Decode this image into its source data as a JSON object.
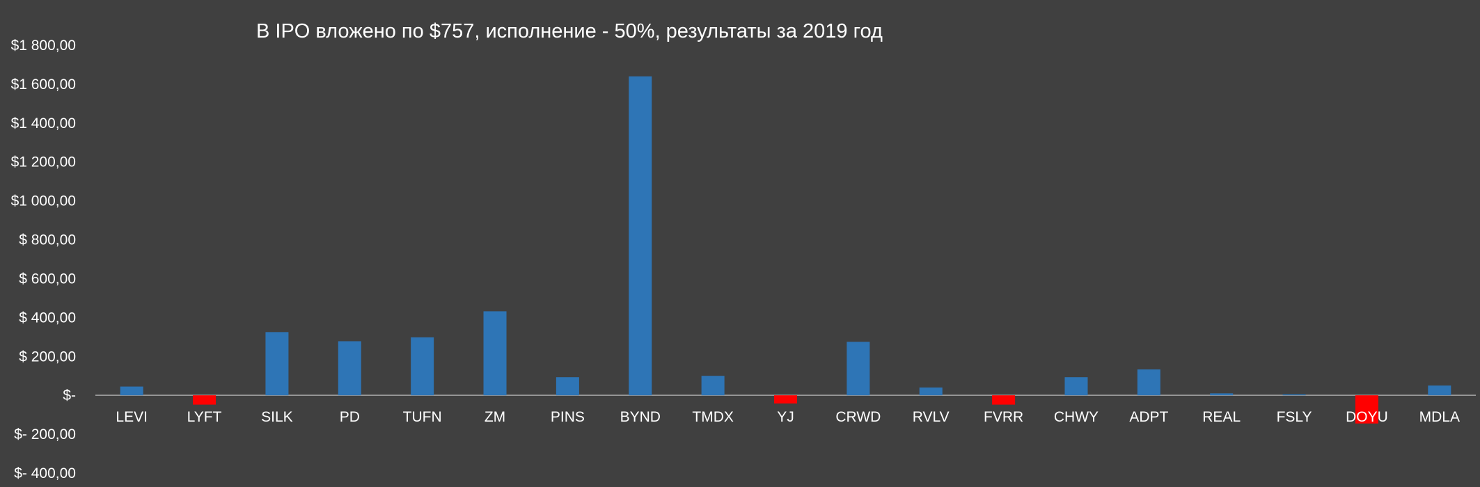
{
  "chart_data": {
    "type": "bar",
    "title": "В IPO вложено по $757, исполнение - 50%, результаты за 2019 год",
    "xlabel": "",
    "ylabel": "",
    "ylim": [
      -400,
      1800
    ],
    "yticks": [
      1800,
      1600,
      1400,
      1200,
      1000,
      800,
      600,
      400,
      200,
      0,
      -200,
      -400
    ],
    "ytick_labels": [
      "$1 800,00",
      "$1 600,00",
      "$1 400,00",
      "$1 200,00",
      "$1 000,00",
      "$ 800,00",
      "$ 600,00",
      "$ 400,00",
      "$ 200,00",
      "$-",
      "$- 200,00",
      "$- 400,00"
    ],
    "grid": false,
    "legend": "none",
    "categories": [
      "LEVI",
      "LYFT",
      "SILK",
      "PD",
      "TUFN",
      "ZM",
      "PINS",
      "BYND",
      "TMDX",
      "YJ",
      "CRWD",
      "RVLV",
      "FVRR",
      "CHWY",
      "ADPT",
      "REAL",
      "FSLY",
      "DOYU",
      "MDLA"
    ],
    "values": [
      45,
      -48,
      325,
      278,
      298,
      432,
      93,
      1640,
      100,
      -42,
      275,
      40,
      -48,
      93,
      133,
      10,
      5,
      -145,
      50
    ],
    "colors": {
      "positive": "#2e75b6",
      "negative": "#ff0000",
      "background": "#404040",
      "text": "#ffffff",
      "axis": "#a6a6a6"
    }
  }
}
